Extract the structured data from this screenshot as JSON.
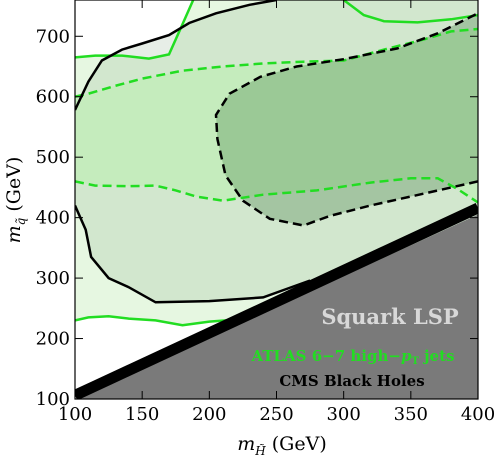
{
  "chart_data": {
    "type": "contour",
    "title": "",
    "xlabel": {
      "main": "m",
      "sub": "H̃",
      "unit": " (GeV)"
    },
    "ylabel": {
      "main": "m",
      "sub": "q̃",
      "unit": " (GeV)"
    },
    "xlim": [
      100,
      400
    ],
    "ylim": [
      100,
      760
    ],
    "x_ticks": [
      "100",
      "150",
      "200",
      "250",
      "300",
      "350",
      "400"
    ],
    "x_tick_values": [
      100,
      150,
      200,
      250,
      300,
      350,
      400
    ],
    "y_ticks": [
      "100",
      "200",
      "300",
      "400",
      "500",
      "600",
      "700"
    ],
    "y_tick_values": [
      100,
      200,
      300,
      400,
      500,
      600,
      700
    ],
    "labels": {
      "lsp": "Squark LSP",
      "atlas": "ATLAS 6−7 high−",
      "atlas_pt": "p",
      "atlas_pt_sub": "T",
      "atlas_tail": " jets",
      "cms": "CMS Black Holes"
    },
    "colors": {
      "atlas_line": "#22dd22",
      "atlas_fill_outer": "#e6f7e1",
      "atlas_fill_inner": "#c5ecbd",
      "cms_fill_outer": "rgba(120,160,120,0.18)",
      "cms_fill_inner": "rgba(60,120,60,0.30)",
      "lsp_region": "#7a7a7a",
      "lsp_border": "#000000",
      "lsp_text": "#d8d8d8",
      "atlas_text": "#22dd22",
      "cms_text": "#000000"
    },
    "series": [
      {
        "id": "atlas-solid",
        "style": "solid",
        "color_key": "atlas_line",
        "points": [
          [
            100,
            230
          ],
          [
            110,
            235
          ],
          [
            125,
            237
          ],
          [
            140,
            233
          ],
          [
            160,
            230
          ],
          [
            180,
            222
          ],
          [
            200,
            228
          ],
          [
            230,
            233
          ],
          [
            260,
            250
          ],
          [
            290,
            275
          ],
          [
            320,
            297
          ],
          [
            350,
            322
          ],
          [
            380,
            355
          ],
          [
            400,
            372
          ]
        ],
        "upper": [
          [
            100,
            665
          ],
          [
            115,
            668
          ],
          [
            135,
            668
          ],
          [
            155,
            663
          ],
          [
            170,
            670
          ],
          [
            180,
            720
          ],
          [
            188,
            760
          ]
        ],
        "upper_right": [
          [
            300,
            760
          ],
          [
            315,
            735
          ],
          [
            330,
            725
          ],
          [
            355,
            723
          ],
          [
            380,
            728
          ],
          [
            400,
            735
          ]
        ]
      },
      {
        "id": "atlas-dashed",
        "style": "dashed",
        "color_key": "atlas_line",
        "lower": [
          [
            100,
            460
          ],
          [
            115,
            453
          ],
          [
            140,
            452
          ],
          [
            160,
            453
          ],
          [
            175,
            445
          ],
          [
            190,
            435
          ],
          [
            210,
            428
          ],
          [
            240,
            438
          ],
          [
            280,
            445
          ],
          [
            320,
            458
          ],
          [
            350,
            465
          ],
          [
            370,
            465
          ],
          [
            385,
            447
          ],
          [
            400,
            425
          ]
        ],
        "upper": [
          [
            100,
            600
          ],
          [
            110,
            605
          ],
          [
            130,
            618
          ],
          [
            150,
            630
          ],
          [
            180,
            643
          ],
          [
            210,
            650
          ],
          [
            240,
            655
          ],
          [
            270,
            658
          ],
          [
            300,
            660
          ],
          [
            330,
            678
          ],
          [
            360,
            695
          ],
          [
            380,
            708
          ],
          [
            400,
            712
          ]
        ]
      },
      {
        "id": "cms-solid",
        "style": "solid",
        "color_key": "cms_text",
        "points": [
          [
            100,
            420
          ],
          [
            108,
            380
          ],
          [
            112,
            335
          ],
          [
            125,
            300
          ],
          [
            140,
            285
          ],
          [
            160,
            260
          ],
          [
            200,
            262
          ],
          [
            240,
            268
          ],
          [
            275,
            296
          ]
        ],
        "upper": [
          [
            100,
            578
          ],
          [
            110,
            625
          ],
          [
            120,
            660
          ],
          [
            135,
            678
          ],
          [
            150,
            688
          ],
          [
            170,
            702
          ],
          [
            185,
            722
          ],
          [
            205,
            738
          ],
          [
            230,
            752
          ],
          [
            250,
            760
          ]
        ]
      },
      {
        "id": "cms-dashed",
        "style": "dashed",
        "color_key": "cms_text",
        "points": [
          [
            400,
            460
          ],
          [
            360,
            440
          ],
          [
            320,
            420
          ],
          [
            290,
            403
          ],
          [
            270,
            387
          ],
          [
            245,
            398
          ],
          [
            225,
            428
          ],
          [
            212,
            470
          ],
          [
            206,
            530
          ],
          [
            205,
            570
          ],
          [
            215,
            605
          ],
          [
            238,
            633
          ],
          [
            265,
            650
          ],
          [
            300,
            662
          ],
          [
            340,
            680
          ],
          [
            370,
            705
          ],
          [
            400,
            738
          ]
        ]
      }
    ]
  }
}
